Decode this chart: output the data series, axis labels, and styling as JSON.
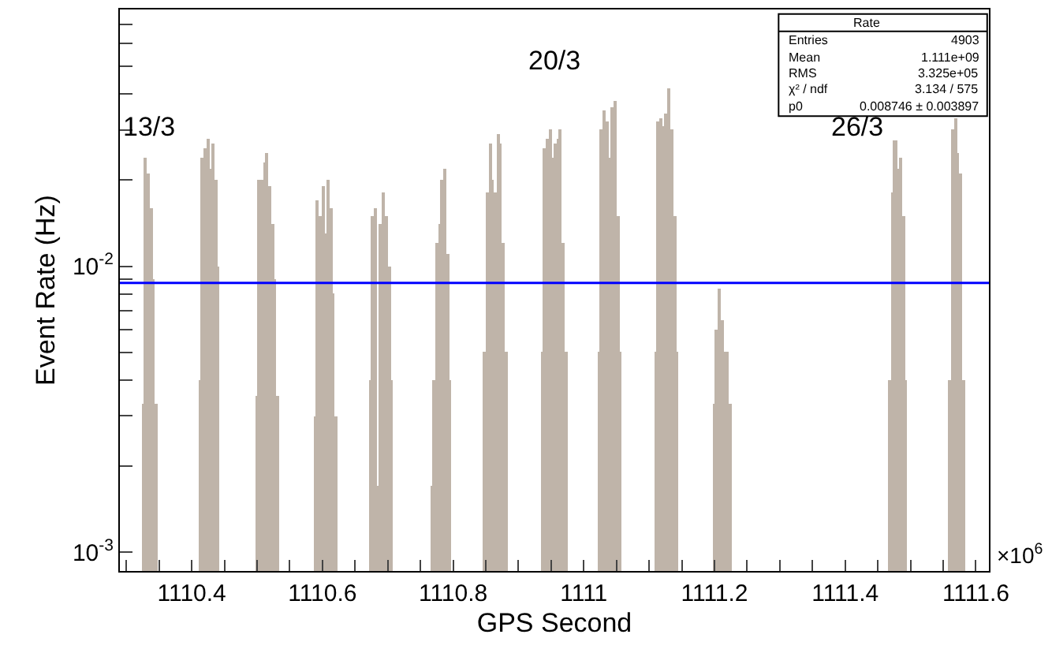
{
  "chart_data": {
    "type": "bar",
    "xlabel": "GPS Second",
    "ylabel": "Event Rate (Hz)",
    "x": [
      1110.326,
      1110.33,
      1110.334,
      1110.338,
      1110.342,
      1110.346,
      1110.413,
      1110.417,
      1110.421,
      1110.425,
      1110.429,
      1110.433,
      1110.437,
      1110.441,
      1110.5,
      1110.504,
      1110.508,
      1110.512,
      1110.516,
      1110.52,
      1110.524,
      1110.528,
      1110.532,
      1110.589,
      1110.593,
      1110.597,
      1110.601,
      1110.605,
      1110.609,
      1110.613,
      1110.617,
      1110.621,
      1110.674,
      1110.678,
      1110.682,
      1110.686,
      1110.69,
      1110.694,
      1110.698,
      1110.702,
      1110.706,
      1110.768,
      1110.772,
      1110.776,
      1110.78,
      1110.784,
      1110.788,
      1110.792,
      1110.796,
      1110.849,
      1110.853,
      1110.857,
      1110.861,
      1110.865,
      1110.869,
      1110.873,
      1110.877,
      1110.881,
      1110.937,
      1110.941,
      1110.945,
      1110.949,
      1110.953,
      1110.957,
      1110.961,
      1110.965,
      1110.969,
      1110.973,
      1111.024,
      1111.028,
      1111.032,
      1111.036,
      1111.04,
      1111.044,
      1111.048,
      1111.052,
      1111.056,
      1111.111,
      1111.115,
      1111.119,
      1111.123,
      1111.127,
      1111.131,
      1111.135,
      1111.139,
      1111.143,
      1111.2,
      1111.204,
      1111.208,
      1111.212,
      1111.216,
      1111.22,
      1111.224,
      1111.469,
      1111.473,
      1111.477,
      1111.481,
      1111.485,
      1111.489,
      1111.493,
      1111.561,
      1111.565,
      1111.569,
      1111.573,
      1111.577,
      1111.581
    ],
    "series": [
      {
        "color": "#bfb4a9",
        "values": [
          0.0033,
          0.024,
          0.021,
          0.016,
          0.009,
          0.0033,
          0.004,
          0.024,
          0.026,
          0.028,
          0.022,
          0.027,
          0.02,
          0.01,
          0.0035,
          0.02,
          0.02,
          0.023,
          0.025,
          0.019,
          0.014,
          0.009,
          0.0035,
          0.003,
          0.017,
          0.015,
          0.019,
          0.013,
          0.02,
          0.016,
          0.008,
          0.003,
          0.004,
          0.015,
          0.016,
          0.0017,
          0.014,
          0.018,
          0.015,
          0.01,
          0.004,
          0.0017,
          0.004,
          0.012,
          0.014,
          0.02,
          0.022,
          0.011,
          0.004,
          0.005,
          0.018,
          0.027,
          0.02,
          0.018,
          0.029,
          0.027,
          0.012,
          0.005,
          0.005,
          0.026,
          0.028,
          0.03,
          0.024,
          0.027,
          0.028,
          0.03,
          0.012,
          0.005,
          0.005,
          0.03,
          0.035,
          0.032,
          0.024,
          0.036,
          0.038,
          0.015,
          0.005,
          0.005,
          0.032,
          0.033,
          0.031,
          0.034,
          0.042,
          0.03,
          0.015,
          0.005,
          0.0033,
          0.006,
          0.0083,
          0.0065,
          0.005,
          0.005,
          0.0033,
          0.004,
          0.018,
          0.0275,
          0.022,
          0.024,
          0.015,
          0.004,
          0.004,
          0.03,
          0.033,
          0.025,
          0.021,
          0.004
        ]
      }
    ],
    "log": true,
    "xlim": [
      1110.29,
      1111.62
    ],
    "xticks": [
      {
        "value": 1110.3,
        "label": null
      },
      {
        "value": 1110.35,
        "label": null
      },
      1110.4,
      {
        "value": 1110.45,
        "label": null
      },
      {
        "value": 1110.5,
        "label": null
      },
      {
        "value": 1110.55,
        "label": null
      },
      1110.6,
      {
        "value": 1110.65,
        "label": null
      },
      {
        "value": 1110.7,
        "label": null
      },
      {
        "value": 1110.75,
        "label": null
      },
      1110.8,
      {
        "value": 1110.85,
        "label": null
      },
      {
        "value": 1110.9,
        "label": null
      },
      {
        "value": 1110.95,
        "label": null
      },
      1111,
      {
        "value": 1111.05,
        "label": null
      },
      {
        "value": 1111.1,
        "label": null
      },
      {
        "value": 1111.15,
        "label": null
      },
      1111.2,
      {
        "value": 1111.25,
        "label": null
      },
      {
        "value": 1111.3,
        "label": null
      },
      {
        "value": 1111.35,
        "label": null
      },
      1111.4,
      {
        "value": 1111.45,
        "label": null
      },
      {
        "value": 1111.5,
        "label": null
      },
      {
        "value": 1111.55,
        "label": null
      },
      1111.6
    ],
    "ylim": [
      0.00086,
      0.079
    ],
    "yticks": [
      {
        "value": 0.001,
        "label": "10$^{-3}$"
      },
      {
        "value": 0.002,
        "label": null
      },
      {
        "value": 0.003,
        "label": null
      },
      {
        "value": 0.004,
        "label": null
      },
      {
        "value": 0.005,
        "label": null
      },
      {
        "value": 0.006,
        "label": null
      },
      {
        "value": 0.007,
        "label": null
      },
      {
        "value": 0.008,
        "label": null
      },
      {
        "value": 0.009,
        "label": null
      },
      {
        "value": 0.01,
        "label": "10$^{-2}$"
      },
      {
        "value": 0.02,
        "label": null
      },
      {
        "value": 0.03,
        "label": null
      },
      {
        "value": 0.04,
        "label": null
      },
      {
        "value": 0.05,
        "label": null
      },
      {
        "value": 0.06,
        "label": null
      },
      {
        "value": 0.07,
        "label": null
      }
    ],
    "ref_lines": [
      {
        "axis": "y",
        "value": 0.008746,
        "color": "#0000ff"
      }
    ],
    "annotations": [
      "×10$^{6}$",
      "Rate",
      "Entries",
      "4903",
      "Mean",
      "1.111e+09",
      "RMS",
      "3.325e+05",
      "χ² / ndf",
      "3.134 / 575",
      "p0",
      "0.008746 ± 0.003897",
      "13/3",
      "20/3",
      "26/3"
    ]
  }
}
